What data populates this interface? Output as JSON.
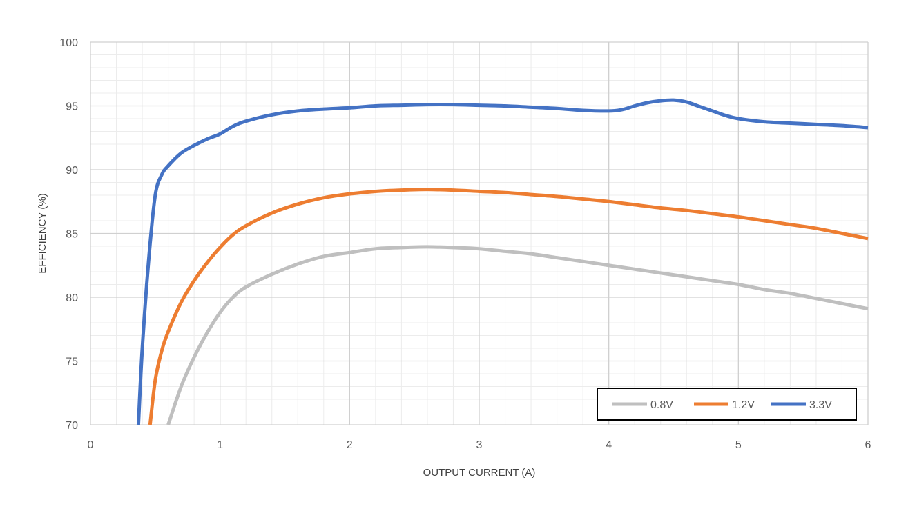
{
  "chart_data": {
    "type": "line",
    "title": "",
    "xlabel": "OUTPUT CURRENT (A)",
    "ylabel": "EFFICIENCY (%)",
    "xlim": [
      0,
      6
    ],
    "ylim": [
      70,
      100
    ],
    "xticks": [
      "0",
      "1",
      "2",
      "3",
      "4",
      "5",
      "6"
    ],
    "yticks": [
      "70",
      "75",
      "80",
      "85",
      "90",
      "95",
      "100"
    ],
    "grid": true,
    "legend_position": "bottom-right",
    "series": [
      {
        "name": "0.8V",
        "color": "#bfbfbf",
        "x": [
          0.6,
          0.7,
          0.8,
          0.9,
          1.0,
          1.1,
          1.2,
          1.4,
          1.6,
          1.8,
          2.0,
          2.2,
          2.4,
          2.6,
          2.8,
          3.0,
          3.2,
          3.4,
          3.6,
          3.8,
          4.0,
          4.2,
          4.4,
          4.6,
          4.8,
          5.0,
          5.2,
          5.4,
          5.6,
          5.8,
          6.0
        ],
        "y": [
          70.0,
          73.0,
          75.3,
          77.2,
          78.8,
          80.0,
          80.8,
          81.8,
          82.6,
          83.2,
          83.5,
          83.8,
          83.9,
          83.95,
          83.9,
          83.8,
          83.6,
          83.4,
          83.1,
          82.8,
          82.5,
          82.2,
          81.9,
          81.6,
          81.3,
          81.0,
          80.6,
          80.3,
          79.9,
          79.5,
          79.1
        ]
      },
      {
        "name": "1.2V",
        "color": "#ed7d31",
        "x": [
          0.46,
          0.5,
          0.55,
          0.6,
          0.7,
          0.8,
          0.9,
          1.0,
          1.1,
          1.2,
          1.4,
          1.6,
          1.8,
          2.0,
          2.2,
          2.4,
          2.6,
          2.8,
          3.0,
          3.2,
          3.4,
          3.6,
          3.8,
          4.0,
          4.2,
          4.4,
          4.6,
          4.8,
          5.0,
          5.2,
          5.4,
          5.6,
          5.8,
          6.0
        ],
        "y": [
          70.0,
          73.5,
          75.8,
          77.3,
          79.6,
          81.3,
          82.7,
          83.9,
          84.9,
          85.6,
          86.6,
          87.3,
          87.8,
          88.1,
          88.3,
          88.4,
          88.45,
          88.4,
          88.3,
          88.2,
          88.05,
          87.9,
          87.7,
          87.5,
          87.25,
          87.0,
          86.8,
          86.55,
          86.3,
          86.0,
          85.7,
          85.4,
          85.0,
          84.6
        ]
      },
      {
        "name": "3.3V",
        "color": "#4472c4",
        "x": [
          0.37,
          0.4,
          0.45,
          0.5,
          0.55,
          0.6,
          0.7,
          0.8,
          0.9,
          1.0,
          1.1,
          1.2,
          1.4,
          1.6,
          1.8,
          2.0,
          2.2,
          2.4,
          2.6,
          2.8,
          3.0,
          3.2,
          3.4,
          3.6,
          3.8,
          4.0,
          4.1,
          4.2,
          4.3,
          4.4,
          4.5,
          4.6,
          4.7,
          4.8,
          4.9,
          5.0,
          5.2,
          5.4,
          5.6,
          5.8,
          6.0
        ],
        "y": [
          70.0,
          76.0,
          83.0,
          88.0,
          89.6,
          90.3,
          91.3,
          91.9,
          92.4,
          92.8,
          93.4,
          93.8,
          94.3,
          94.6,
          94.75,
          94.85,
          95.0,
          95.05,
          95.1,
          95.1,
          95.05,
          95.0,
          94.9,
          94.8,
          94.65,
          94.6,
          94.7,
          95.0,
          95.25,
          95.4,
          95.45,
          95.3,
          94.95,
          94.6,
          94.25,
          94.0,
          93.75,
          93.65,
          93.55,
          93.45,
          93.3
        ]
      }
    ]
  }
}
